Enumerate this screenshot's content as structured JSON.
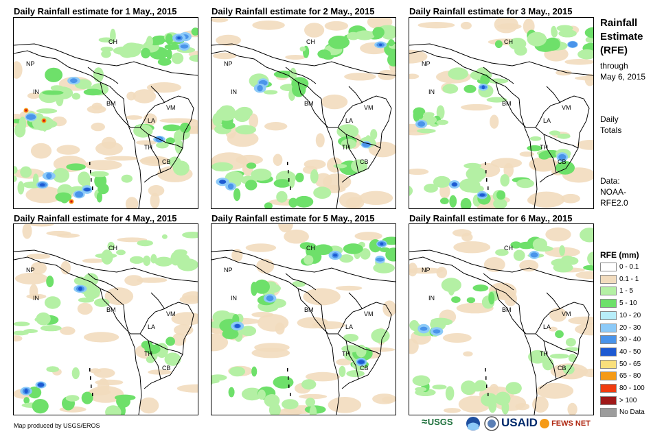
{
  "panels": [
    {
      "title": "Daily Rainfall estimate for 1 May., 2015",
      "intensity": 3
    },
    {
      "title": "Daily Rainfall estimate for 2 May., 2015",
      "intensity": 2
    },
    {
      "title": "Daily Rainfall estimate for 3 May., 2015",
      "intensity": 2
    },
    {
      "title": "Daily Rainfall estimate for 4 May., 2015",
      "intensity": 1
    },
    {
      "title": "Daily Rainfall estimate for 5 May., 2015",
      "intensity": 2
    },
    {
      "title": "Daily Rainfall estimate for 6 May., 2015",
      "intensity": 1
    }
  ],
  "country_labels": [
    "CH",
    "NP",
    "IN",
    "BM",
    "LA",
    "VM",
    "TH",
    "CB"
  ],
  "side": {
    "title_1": "Rainfall",
    "title_2": "Estimate",
    "title_3": "(RFE)",
    "through": "through",
    "date": "May 6, 2015",
    "daily": "Daily",
    "totals": "Totals",
    "data": "Data:",
    "source_1": "NOAA-",
    "source_2": "RFE2.0"
  },
  "legend": {
    "title": "RFE (mm)",
    "items": [
      {
        "label": "0 - 0.1",
        "color": "#ffffff"
      },
      {
        "label": "0.1 - 1",
        "color": "#f2dcbe"
      },
      {
        "label": "1 - 5",
        "color": "#b4f0a4"
      },
      {
        "label": "5 - 10",
        "color": "#6ee06a"
      },
      {
        "label": "10 - 20",
        "color": "#b8eefa"
      },
      {
        "label": "20 - 30",
        "color": "#8ccaf8"
      },
      {
        "label": "30 - 40",
        "color": "#4a94ea"
      },
      {
        "label": "40 - 50",
        "color": "#1d5ad2"
      },
      {
        "label": "50 - 65",
        "color": "#fae07c"
      },
      {
        "label": "65 - 80",
        "color": "#f59a16"
      },
      {
        "label": "80 - 100",
        "color": "#f03c10"
      },
      {
        "label": "> 100",
        "color": "#a01818"
      },
      {
        "label": "No Data",
        "color": "#9c9c9c"
      }
    ]
  },
  "footer": {
    "credit": "Map produced by USGS/EROS"
  },
  "logos": {
    "usgs": "USGS",
    "usaid": "USAID",
    "fewsnet": "FEWS NET"
  }
}
